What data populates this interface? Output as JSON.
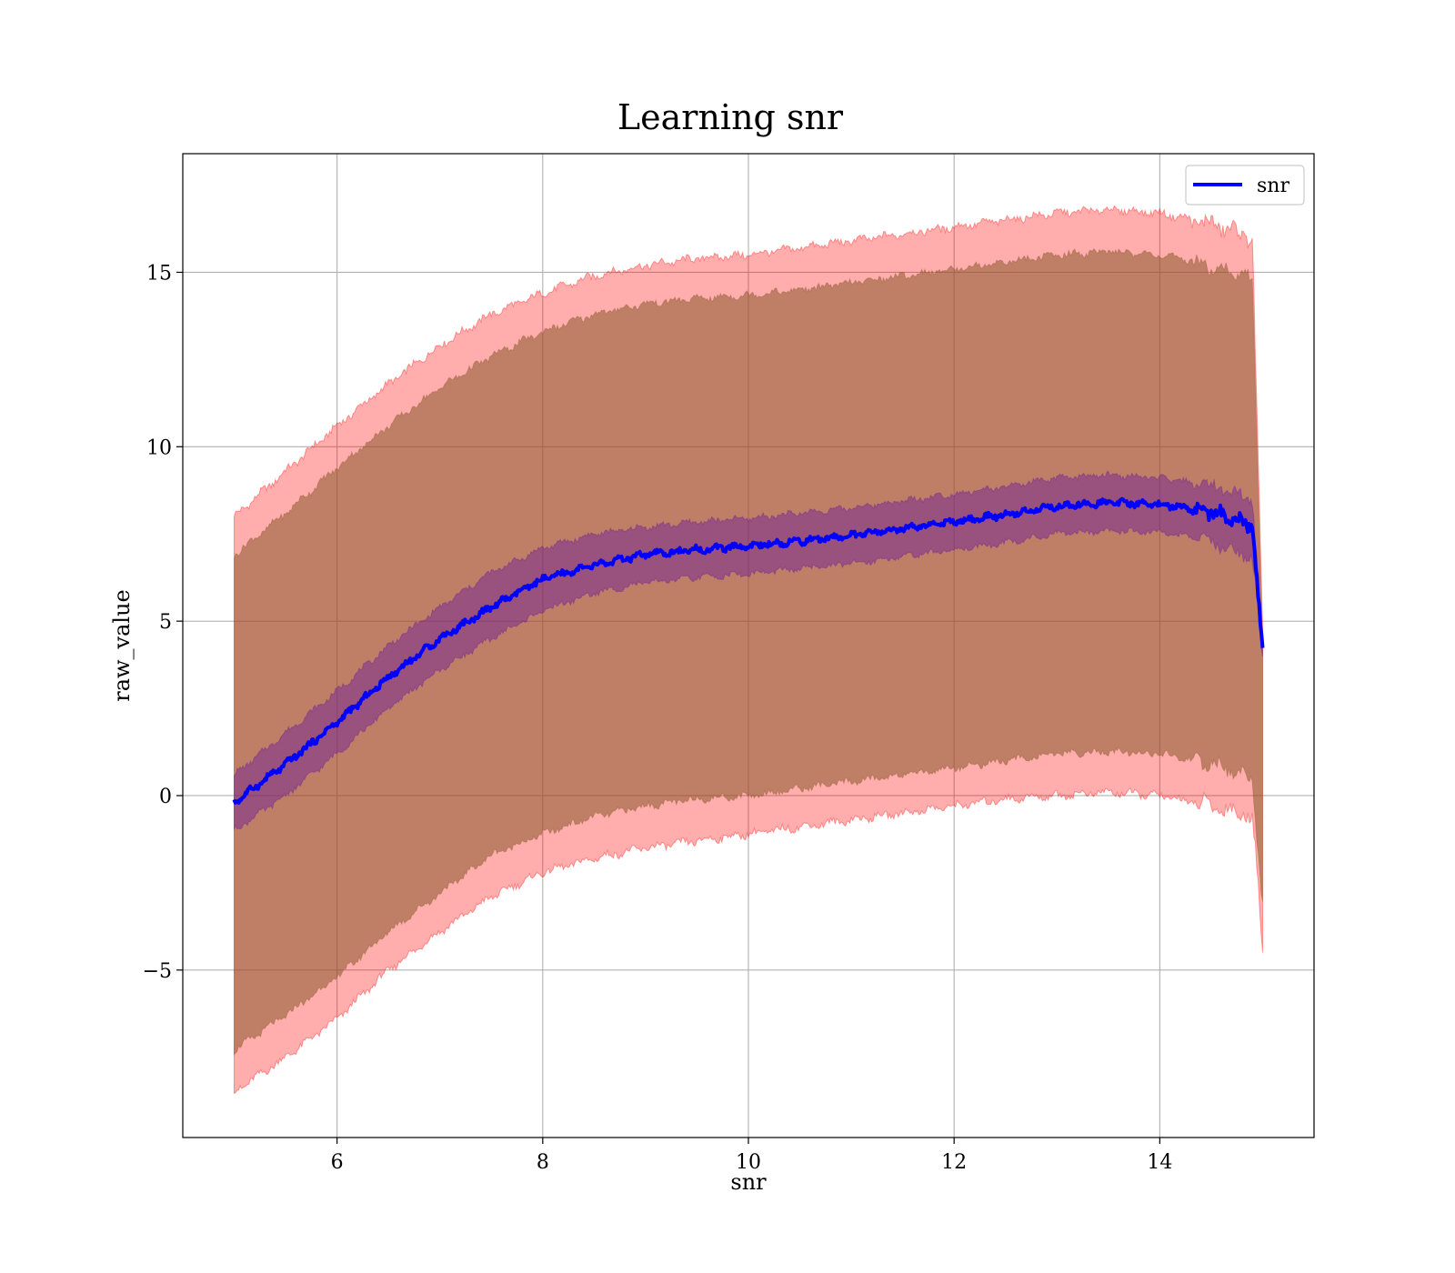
{
  "chart_data": {
    "type": "line",
    "title": "Learning snr",
    "xlabel": "snr",
    "ylabel": "raw_value",
    "xlim": [
      4.5,
      15.5
    ],
    "ylim": [
      -9.8,
      18.4
    ],
    "grid": true,
    "legend_position": "top-right",
    "x_ticks": [
      6,
      8,
      10,
      12,
      14
    ],
    "y_ticks": [
      -5,
      0,
      5,
      10,
      15
    ],
    "x_tick_labels": [
      "6",
      "8",
      "10",
      "12",
      "14"
    ],
    "y_tick_labels": [
      "−5",
      "0",
      "5",
      "10",
      "15"
    ],
    "colors": {
      "line": "#0000ff",
      "outer_band": "#ff0000",
      "mid_band": "#8b5a2b",
      "inner_band": "#6a1b9a",
      "grid": "#b0b0b0"
    },
    "series": [
      {
        "name": "snr",
        "x": [
          5.0,
          5.5,
          6.0,
          6.5,
          7.0,
          7.5,
          8.0,
          8.5,
          9.0,
          9.5,
          10.0,
          10.5,
          11.0,
          11.5,
          12.0,
          12.5,
          13.0,
          13.5,
          14.0,
          14.5,
          14.9,
          15.0
        ],
        "y": [
          -0.2,
          0.9,
          2.1,
          3.4,
          4.5,
          5.4,
          6.2,
          6.6,
          6.9,
          7.05,
          7.15,
          7.3,
          7.45,
          7.65,
          7.85,
          8.05,
          8.3,
          8.4,
          8.35,
          8.15,
          7.7,
          4.1
        ]
      }
    ],
    "bands": [
      {
        "x": [
          5.0,
          5.5,
          6.0,
          6.5,
          7.0,
          7.5,
          8.0,
          8.5,
          9.0,
          9.5,
          10.0,
          10.5,
          11.0,
          11.5,
          12.0,
          12.5,
          13.0,
          13.5,
          14.0,
          14.5,
          14.9,
          15.0
        ],
        "upper": [
          8.0,
          9.3,
          10.6,
          11.8,
          12.9,
          13.8,
          14.4,
          14.9,
          15.2,
          15.4,
          15.5,
          15.7,
          15.9,
          16.1,
          16.3,
          16.5,
          16.7,
          16.8,
          16.7,
          16.4,
          16.0,
          4.5
        ],
        "lower": [
          -8.5,
          -7.5,
          -6.4,
          -5.0,
          -3.9,
          -2.9,
          -2.2,
          -1.8,
          -1.5,
          -1.3,
          -1.1,
          -0.9,
          -0.7,
          -0.5,
          -0.3,
          -0.1,
          0.0,
          0.1,
          0.0,
          -0.3,
          -0.6,
          -4.3
        ]
      },
      {
        "x": [
          5.0,
          5.5,
          6.0,
          6.5,
          7.0,
          7.5,
          8.0,
          8.5,
          9.0,
          9.5,
          10.0,
          10.5,
          11.0,
          11.5,
          12.0,
          12.5,
          13.0,
          13.5,
          14.0,
          14.5,
          14.9,
          15.0
        ],
        "upper": [
          6.9,
          8.1,
          9.4,
          10.6,
          11.7,
          12.6,
          13.3,
          13.8,
          14.1,
          14.25,
          14.35,
          14.5,
          14.7,
          14.9,
          15.1,
          15.3,
          15.5,
          15.6,
          15.5,
          15.2,
          14.8,
          4.4
        ],
        "lower": [
          -7.3,
          -6.3,
          -5.2,
          -3.9,
          -2.8,
          -1.7,
          -1.1,
          -0.6,
          -0.3,
          -0.1,
          0.0,
          0.2,
          0.4,
          0.6,
          0.8,
          1.0,
          1.2,
          1.25,
          1.2,
          0.9,
          0.5,
          -3.2
        ]
      },
      {
        "x": [
          5.0,
          5.5,
          6.0,
          6.5,
          7.0,
          7.5,
          8.0,
          8.5,
          9.0,
          9.5,
          10.0,
          10.5,
          11.0,
          11.5,
          12.0,
          12.5,
          13.0,
          13.5,
          14.0,
          14.5,
          14.9,
          15.0
        ],
        "upper": [
          0.6,
          1.8,
          3.0,
          4.3,
          5.4,
          6.4,
          7.1,
          7.5,
          7.7,
          7.85,
          7.95,
          8.1,
          8.25,
          8.45,
          8.65,
          8.85,
          9.1,
          9.2,
          9.1,
          8.9,
          8.5,
          4.3
        ],
        "lower": [
          -1.0,
          0.0,
          1.2,
          2.5,
          3.6,
          4.5,
          5.3,
          5.8,
          6.1,
          6.25,
          6.35,
          6.5,
          6.65,
          6.85,
          7.05,
          7.25,
          7.5,
          7.6,
          7.55,
          7.3,
          6.8,
          3.9
        ]
      }
    ]
  }
}
